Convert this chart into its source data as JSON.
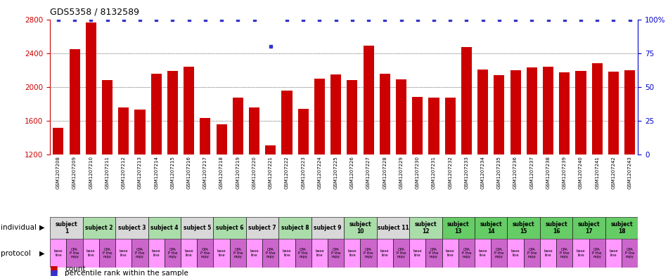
{
  "title": "GDS5358 / 8132589",
  "bar_color": "#CC0000",
  "dot_color": "#3333CC",
  "bar_values": [
    1520,
    2450,
    2760,
    2080,
    1760,
    1730,
    2160,
    2190,
    2240,
    1630,
    1560,
    1870,
    1760,
    1310,
    1960,
    1740,
    2100,
    2150,
    2080,
    2490,
    2160,
    2090,
    1880,
    1870,
    1870,
    2470,
    2210,
    2140,
    2200,
    2230,
    2240,
    2170,
    2190,
    2280,
    2180,
    2200
  ],
  "dot_values": [
    100,
    100,
    100,
    100,
    100,
    100,
    100,
    100,
    100,
    100,
    100,
    100,
    100,
    80,
    100,
    100,
    100,
    100,
    100,
    100,
    100,
    100,
    100,
    100,
    100,
    100,
    100,
    100,
    100,
    100,
    100,
    100,
    100,
    100,
    100,
    100
  ],
  "sample_ids": [
    "GSM1207208",
    "GSM1207209",
    "GSM1207210",
    "GSM1207211",
    "GSM1207212",
    "GSM1207213",
    "GSM1207214",
    "GSM1207215",
    "GSM1207216",
    "GSM1207217",
    "GSM1207218",
    "GSM1207219",
    "GSM1207220",
    "GSM1207221",
    "GSM1207222",
    "GSM1207223",
    "GSM1207224",
    "GSM1207225",
    "GSM1207226",
    "GSM1207227",
    "GSM1207228",
    "GSM1207229",
    "GSM1207230",
    "GSM1207231",
    "GSM1207232",
    "GSM1207233",
    "GSM1207234",
    "GSM1207235",
    "GSM1207236",
    "GSM1207237",
    "GSM1207238",
    "GSM1207239",
    "GSM1207240",
    "GSM1207241",
    "GSM1207242",
    "GSM1207243"
  ],
  "subjects": [
    {
      "label": "subject\n1",
      "start": 0,
      "end": 2,
      "color": "#D8D8D8"
    },
    {
      "label": "subject 2",
      "start": 2,
      "end": 4,
      "color": "#AADDAA"
    },
    {
      "label": "subject 3",
      "start": 4,
      "end": 6,
      "color": "#D8D8D8"
    },
    {
      "label": "subject 4",
      "start": 6,
      "end": 8,
      "color": "#AADDAA"
    },
    {
      "label": "subject 5",
      "start": 8,
      "end": 10,
      "color": "#D8D8D8"
    },
    {
      "label": "subject 6",
      "start": 10,
      "end": 12,
      "color": "#AADDAA"
    },
    {
      "label": "subject 7",
      "start": 12,
      "end": 14,
      "color": "#D8D8D8"
    },
    {
      "label": "subject 8",
      "start": 14,
      "end": 16,
      "color": "#AADDAA"
    },
    {
      "label": "subject 9",
      "start": 16,
      "end": 18,
      "color": "#D8D8D8"
    },
    {
      "label": "subject\n10",
      "start": 18,
      "end": 20,
      "color": "#AADDAA"
    },
    {
      "label": "subject 11",
      "start": 20,
      "end": 22,
      "color": "#D8D8D8"
    },
    {
      "label": "subject\n12",
      "start": 22,
      "end": 24,
      "color": "#AADDAA"
    },
    {
      "label": "subject\n13",
      "start": 24,
      "end": 26,
      "color": "#66CC66"
    },
    {
      "label": "subject\n14",
      "start": 26,
      "end": 28,
      "color": "#66CC66"
    },
    {
      "label": "subject\n15",
      "start": 28,
      "end": 30,
      "color": "#66CC66"
    },
    {
      "label": "subject\n16",
      "start": 30,
      "end": 32,
      "color": "#66CC66"
    },
    {
      "label": "subject\n17",
      "start": 32,
      "end": 34,
      "color": "#66CC66"
    },
    {
      "label": "subject\n18",
      "start": 34,
      "end": 36,
      "color": "#66CC66"
    }
  ],
  "ylim_left": [
    1200,
    2800
  ],
  "ylim_right": [
    0,
    100
  ],
  "yticks_left": [
    1200,
    1600,
    2000,
    2400,
    2800
  ],
  "yticks_right": [
    0,
    25,
    50,
    75,
    100
  ],
  "left_axis_color": "#CC0000",
  "right_axis_color": "#0000CC",
  "background_color": "#FFFFFF",
  "fig_width": 9.5,
  "fig_height": 3.93,
  "dpi": 100
}
